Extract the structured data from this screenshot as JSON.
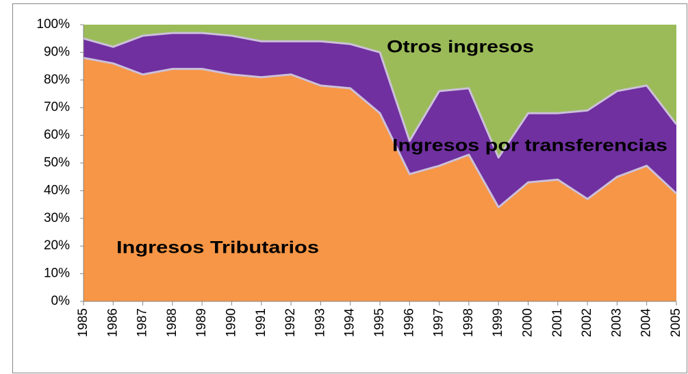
{
  "chart_data": {
    "type": "stacked_area",
    "categories": [
      "1985",
      "1986",
      "1987",
      "1988",
      "1989",
      "1990",
      "1991",
      "1992",
      "1993",
      "1994",
      "1995",
      "1996",
      "1997",
      "1998",
      "1999",
      "2000",
      "2001",
      "2002",
      "2003",
      "2004",
      "2005"
    ],
    "series": [
      {
        "name": "Ingresos Tributarios",
        "color": "#f79646",
        "values": [
          88,
          86,
          82,
          84,
          84,
          82,
          81,
          82,
          78,
          77,
          68,
          46,
          49,
          53,
          34,
          43,
          44,
          37,
          45,
          49,
          39
        ]
      },
      {
        "name": "Ingresos por transferencias",
        "color": "#7030a0",
        "values": [
          7,
          6,
          14,
          13,
          13,
          14,
          13,
          12,
          16,
          16,
          22,
          12,
          27,
          24,
          18,
          25,
          24,
          32,
          31,
          29,
          25
        ]
      },
      {
        "name": "Otros ingresos",
        "color": "#9bbb59",
        "values": [
          5,
          8,
          4,
          3,
          3,
          4,
          6,
          6,
          6,
          7,
          10,
          42,
          24,
          23,
          48,
          32,
          32,
          31,
          24,
          22,
          36
        ]
      }
    ],
    "ylim": [
      0,
      100
    ],
    "yticks": [
      {
        "value": 0,
        "label": "0%"
      },
      {
        "value": 10,
        "label": "10%"
      },
      {
        "value": 20,
        "label": "20%"
      },
      {
        "value": 30,
        "label": "30%"
      },
      {
        "value": 40,
        "label": "40%"
      },
      {
        "value": 50,
        "label": "50%"
      },
      {
        "value": 60,
        "label": "60%"
      },
      {
        "value": 70,
        "label": "70%"
      },
      {
        "value": 80,
        "label": "80%"
      },
      {
        "value": 90,
        "label": "90%"
      },
      {
        "value": 100,
        "label": "100%"
      }
    ]
  }
}
